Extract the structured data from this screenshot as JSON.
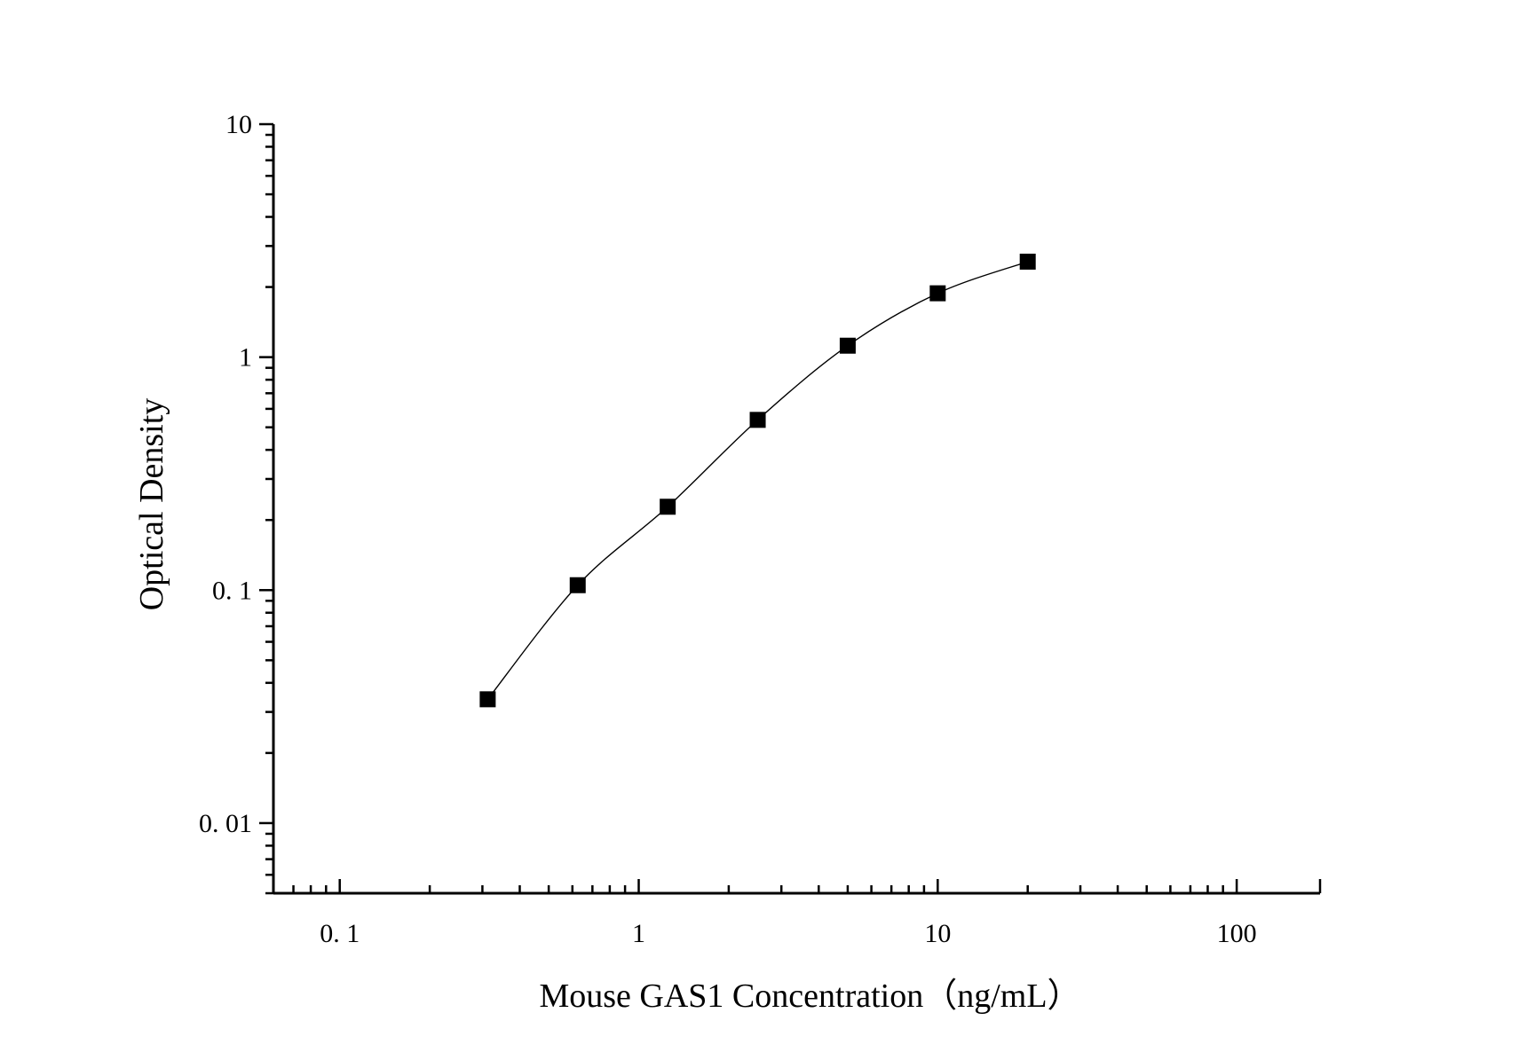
{
  "chart_data": {
    "type": "scatter",
    "xlabel": "Mouse GAS1 Concentration（ng/mL）",
    "ylabel": "Optical Density",
    "x_scale": "log",
    "y_scale": "log",
    "xlim": [
      0.06,
      190
    ],
    "ylim": [
      0.005,
      10
    ],
    "x_ticks": [
      {
        "value": 0.1,
        "label": "0. 1"
      },
      {
        "value": 1,
        "label": "1"
      },
      {
        "value": 10,
        "label": "10"
      },
      {
        "value": 100,
        "label": "100"
      }
    ],
    "y_ticks": [
      {
        "value": 0.01,
        "label": "0. 01"
      },
      {
        "value": 0.1,
        "label": "0. 1"
      },
      {
        "value": 1,
        "label": "1"
      },
      {
        "value": 10,
        "label": "10"
      }
    ],
    "grid": false,
    "series": [
      {
        "x": [
          0.3125,
          0.625,
          1.25,
          2.5,
          5,
          10,
          20
        ],
        "y": [
          0.034,
          0.105,
          0.228,
          0.538,
          1.12,
          1.88,
          2.57
        ],
        "marker": "square",
        "color": "#000000",
        "fit_line": true
      }
    ]
  }
}
